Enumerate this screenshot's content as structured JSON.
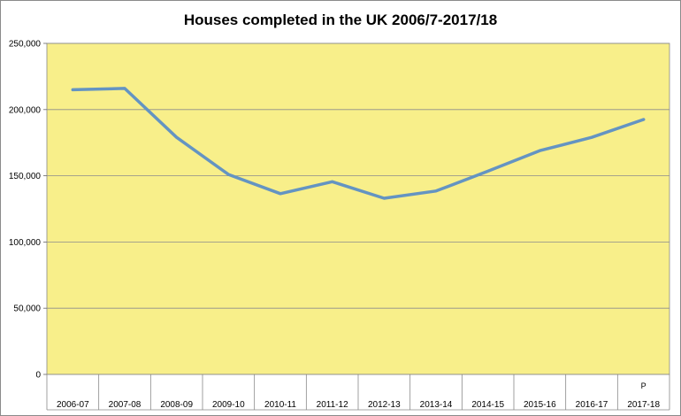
{
  "chart_data": {
    "type": "line",
    "title": "Houses completed in the UK 2006/7-2017/18",
    "xlabel": "",
    "ylabel": "",
    "categories": [
      "2006-07",
      "2007-08",
      "2008-09",
      "2009-10",
      "2010-11",
      "2011-12",
      "2012-13",
      "2013-14",
      "2014-15",
      "2015-16",
      "2016-17",
      "2017-18"
    ],
    "series": [
      {
        "values": [
          215000,
          216000,
          179000,
          151000,
          136500,
          145500,
          133000,
          138500,
          153500,
          169000,
          179000,
          192500
        ]
      }
    ],
    "ylim": [
      0,
      250000
    ],
    "yticks": [
      0,
      50000,
      100000,
      150000,
      200000,
      250000
    ],
    "ytick_labels": [
      "0",
      "50,000",
      "100,000",
      "150,000",
      "200,000",
      "250,000"
    ],
    "grid": true,
    "annotations": [
      {
        "category": "2017-18",
        "text": "P"
      }
    ],
    "colors": {
      "plot_background": "#f8ef8a",
      "line": "#6494c2",
      "gridline": "#8c8c8c"
    }
  }
}
